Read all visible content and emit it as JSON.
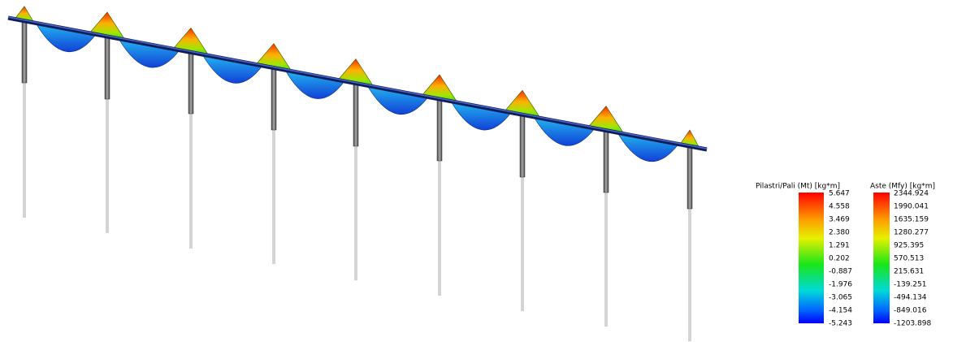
{
  "legends": [
    {
      "title": "Pilastri/Pali (Mt) [kg*m]",
      "labels": [
        "5.647",
        "4.558",
        "3.469",
        "2.380",
        "1.291",
        "0.202",
        "-0.887",
        "-1.976",
        "-3.065",
        "-4.154",
        "-5.243"
      ]
    },
    {
      "title": "Aste (Mfy) [kg*m]",
      "labels": [
        "2344.924",
        "1990.041",
        "1635.159",
        "1280.277",
        "925.395",
        "570.513",
        "215.631",
        "-139.251",
        "-494.134",
        "-849.016",
        "-1203.898"
      ]
    }
  ]
}
